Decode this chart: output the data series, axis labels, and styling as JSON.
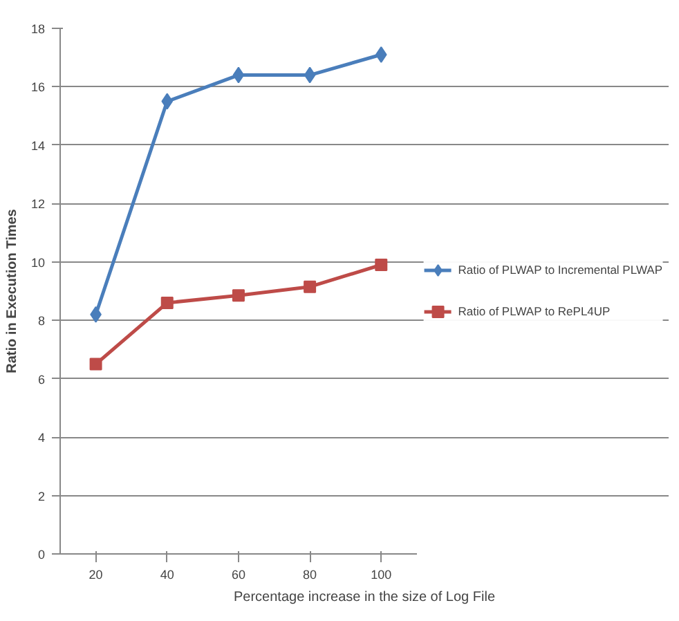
{
  "chart_data": {
    "type": "line",
    "xlabel": "Percentage increase in the size of Log File",
    "ylabel": "Ratio in Execution Times",
    "categories": [
      "20",
      "40",
      "60",
      "80",
      "100"
    ],
    "series": [
      {
        "name": "Ratio of PLWAP to Incremental PLWAP",
        "color": "#4a7ebb",
        "marker": "diamond",
        "values": [
          8.2,
          15.5,
          16.4,
          16.4,
          17.1
        ]
      },
      {
        "name": "Ratio of PLWAP to RePL4UP",
        "color": "#be4b48",
        "marker": "square",
        "values": [
          6.5,
          8.6,
          8.85,
          9.15,
          9.9
        ]
      }
    ],
    "ylim": [
      0,
      18
    ],
    "yticks": [
      0,
      2,
      4,
      6,
      8,
      10,
      12,
      14,
      16,
      18
    ],
    "grid": "y",
    "legend": "right",
    "line_style": "solid"
  }
}
